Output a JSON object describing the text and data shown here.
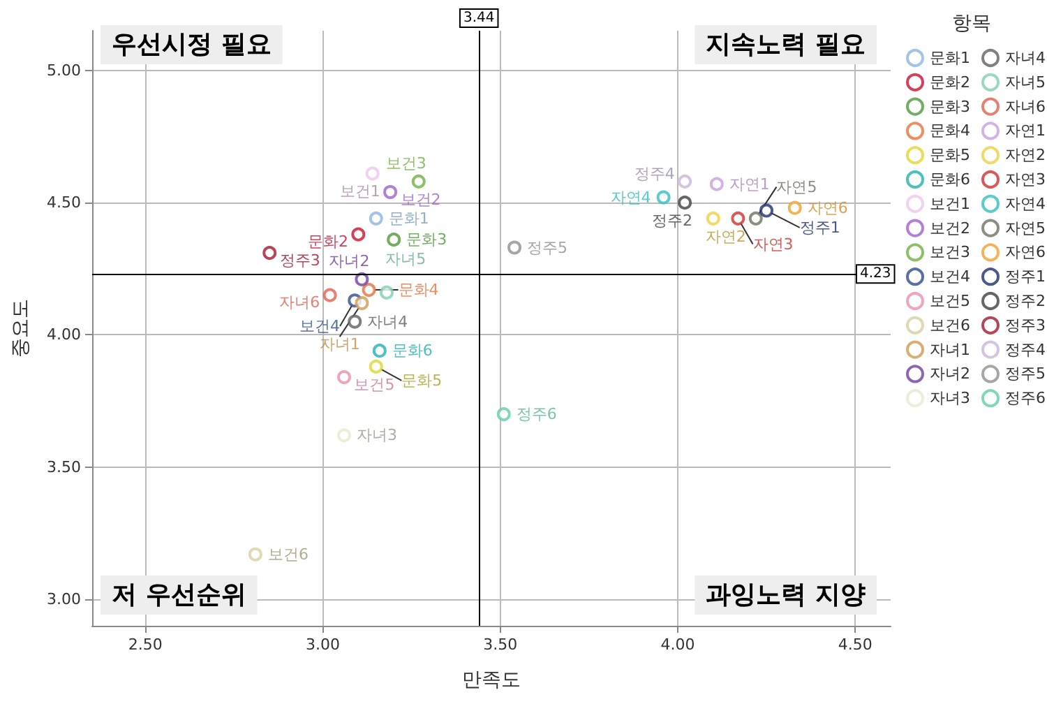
{
  "chart_data": {
    "type": "scatter",
    "xlabel": "만족도",
    "ylabel": "중요도",
    "legend_title": "항목",
    "legend": "right",
    "grid": true,
    "marker": "circle",
    "xlim": [
      2.35,
      4.6
    ],
    "ylim": [
      2.9,
      5.15
    ],
    "xticks": [
      {
        "value": 2.5,
        "label": "2.50"
      },
      {
        "value": 3,
        "label": "3.00"
      },
      {
        "value": 3.5,
        "label": "3.50"
      },
      {
        "value": 4,
        "label": "4.00"
      },
      {
        "value": 4.5,
        "label": "4.50"
      }
    ],
    "yticks": [
      {
        "value": 3,
        "label": "3.00"
      },
      {
        "value": 3.5,
        "label": "3.50"
      },
      {
        "value": 4,
        "label": "4.00"
      },
      {
        "value": 4.5,
        "label": "4.50"
      },
      {
        "value": 5,
        "label": "5.00"
      }
    ],
    "ref_lines": [
      {
        "axis": "x",
        "value": 3.44,
        "label": "3.44",
        "color": "#000000"
      },
      {
        "axis": "y",
        "value": 4.23,
        "label": "4.23",
        "color": "#000000"
      }
    ],
    "annotations": [
      "우선시정 필요",
      "지속노력 필요",
      "저 우선순위",
      "과잉노력 지양"
    ],
    "series": [
      {
        "name": "문화1",
        "color": "#8fb4e0",
        "x": [
          3.15
        ],
        "values": [
          4.44
        ]
      },
      {
        "name": "문화2",
        "color": "#c8102e",
        "x": [
          3.1
        ],
        "values": [
          4.38
        ]
      },
      {
        "name": "문화3",
        "color": "#4e9a3a",
        "x": [
          3.2
        ],
        "values": [
          4.36
        ]
      },
      {
        "name": "문화4",
        "color": "#e8703a",
        "x": [
          3.13
        ],
        "values": [
          4.17
        ]
      },
      {
        "name": "문화5",
        "color": "#e0d830",
        "x": [
          3.15
        ],
        "values": [
          3.88
        ]
      },
      {
        "name": "문화6",
        "color": "#20b0b0",
        "x": [
          3.16
        ],
        "values": [
          3.94
        ]
      },
      {
        "name": "보건1",
        "color": "#ecc8ec",
        "x": [
          3.14
        ],
        "values": [
          4.61
        ]
      },
      {
        "name": "보건2",
        "color": "#a060d0",
        "x": [
          3.19
        ],
        "values": [
          4.54
        ]
      },
      {
        "name": "보건3",
        "color": "#70b040",
        "x": [
          3.27
        ],
        "values": [
          4.58
        ]
      },
      {
        "name": "보건4",
        "color": "#304c90",
        "x": [
          3.09
        ],
        "values": [
          4.13
        ]
      },
      {
        "name": "보건5",
        "color": "#e890b0",
        "x": [
          3.06
        ],
        "values": [
          3.84
        ]
      },
      {
        "name": "보건6",
        "color": "#d8d0a0",
        "x": [
          2.81
        ],
        "values": [
          3.17
        ]
      },
      {
        "name": "자녀1",
        "color": "#d09a50",
        "x": [
          3.11
        ],
        "values": [
          4.12
        ]
      },
      {
        "name": "자녀2",
        "color": "#7040a0",
        "x": [
          3.11
        ],
        "values": [
          4.21
        ]
      },
      {
        "name": "자녀3",
        "color": "#e8e8d0",
        "x": [
          3.06
        ],
        "values": [
          3.62
        ]
      },
      {
        "name": "자녀4",
        "color": "#606060",
        "x": [
          3.09
        ],
        "values": [
          4.05
        ]
      },
      {
        "name": "자녀5",
        "color": "#80d0b0",
        "x": [
          3.18
        ],
        "values": [
          4.16
        ]
      },
      {
        "name": "자녀6",
        "color": "#e06050",
        "x": [
          3.02
        ],
        "values": [
          4.15
        ]
      },
      {
        "name": "자연1",
        "color": "#c8a0e0",
        "x": [
          4.11
        ],
        "values": [
          4.57
        ]
      },
      {
        "name": "자연2",
        "color": "#f0d040",
        "x": [
          4.1
        ],
        "values": [
          4.44
        ]
      },
      {
        "name": "자연3",
        "color": "#d03030",
        "x": [
          4.17
        ],
        "values": [
          4.44
        ]
      },
      {
        "name": "자연4",
        "color": "#30c0c0",
        "x": [
          3.96
        ],
        "values": [
          4.52
        ]
      },
      {
        "name": "자연5",
        "color": "#707060",
        "x": [
          4.22
        ],
        "values": [
          4.44
        ]
      },
      {
        "name": "자연6",
        "color": "#f0a030",
        "x": [
          4.33
        ],
        "values": [
          4.48
        ]
      },
      {
        "name": "정주1",
        "color": "#203070",
        "x": [
          4.25
        ],
        "values": [
          4.47
        ]
      },
      {
        "name": "정주2",
        "color": "#404040",
        "x": [
          4.02
        ],
        "values": [
          4.5
        ]
      },
      {
        "name": "정주3",
        "color": "#a01830",
        "x": [
          2.85
        ],
        "values": [
          4.31
        ]
      },
      {
        "name": "정주4",
        "color": "#c8b8d8",
        "x": [
          4.02
        ],
        "values": [
          4.58
        ]
      },
      {
        "name": "정주5",
        "color": "#909090",
        "x": [
          3.54
        ],
        "values": [
          4.33
        ]
      },
      {
        "name": "정주6",
        "color": "#60d0a0",
        "x": [
          3.51
        ],
        "values": [
          3.7
        ]
      }
    ]
  }
}
